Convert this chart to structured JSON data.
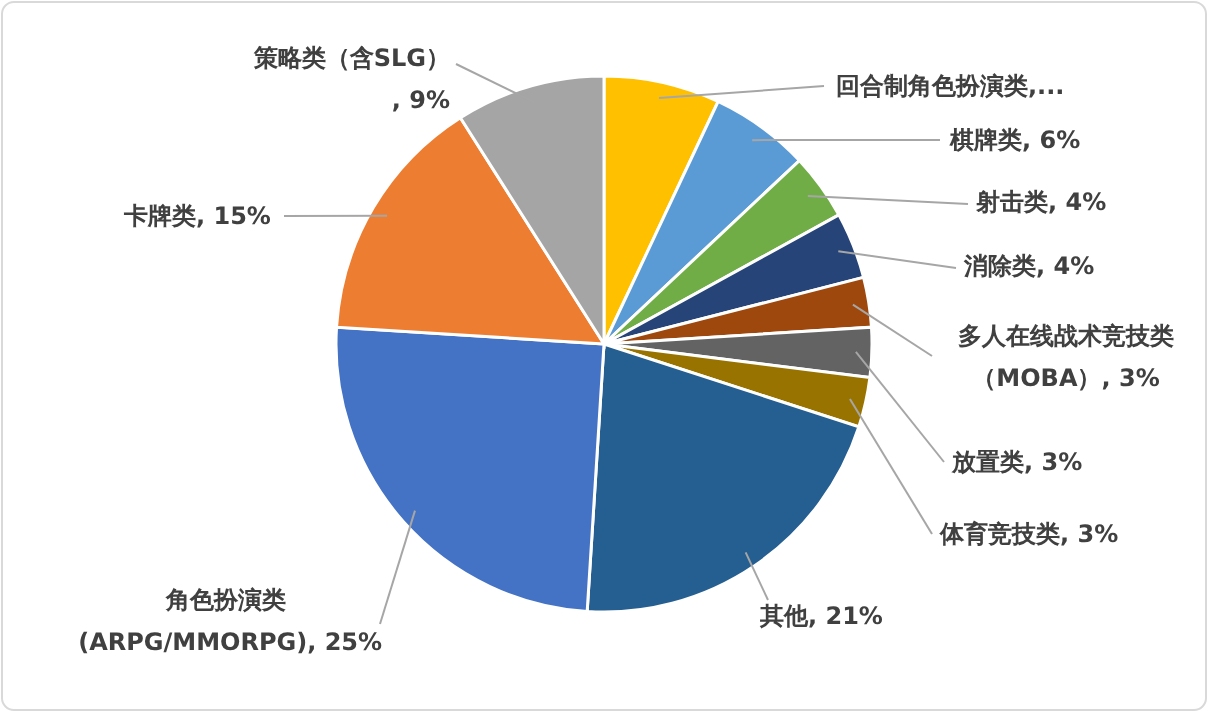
{
  "chart_data": {
    "type": "pie",
    "categories": [
      "回合制角色扮演类,...",
      "棋牌类, 6%",
      "射击类, 4%",
      "消除类, 4%",
      "多人在线战术竞技类（MOBA）, 3%",
      "放置类, 3%",
      "体育竞技类, 3%",
      "其他, 21%",
      "角色扮演类 (ARPG/MMORPG), 25%",
      "卡牌类, 15%",
      "策略类（含SLG）, 9%"
    ],
    "values": [
      7,
      6,
      4,
      4,
      3,
      3,
      3,
      21,
      25,
      15,
      9
    ],
    "colors": [
      "#ffc000",
      "#5b9bd5",
      "#70ad47",
      "#264478",
      "#9e480e",
      "#636363",
      "#997300",
      "#255e91",
      "#4472c4",
      "#ed7d31",
      "#a5a5a5"
    ]
  }
}
